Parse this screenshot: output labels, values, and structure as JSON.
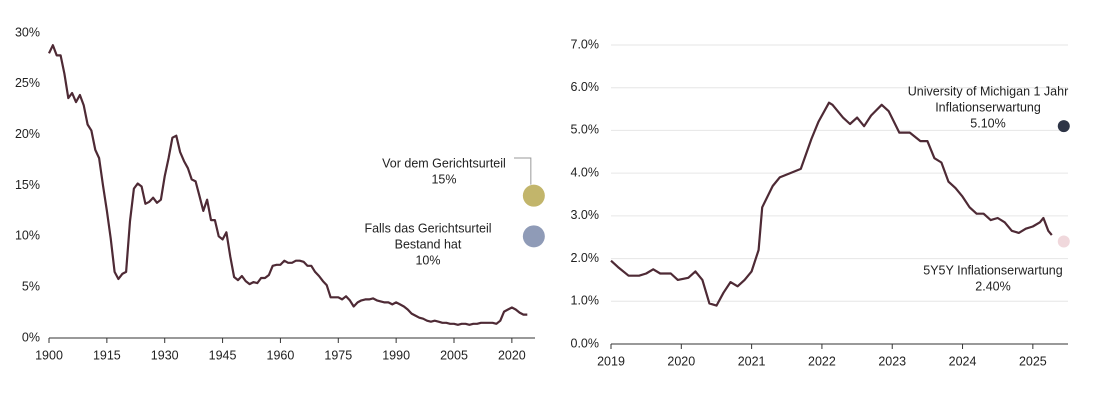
{
  "chart_data": [
    {
      "type": "line",
      "color": "#4e2a35",
      "x": [
        1900,
        1901,
        1902,
        1903,
        1904,
        1905,
        1906,
        1907,
        1908,
        1909,
        1910,
        1911,
        1912,
        1913,
        1914,
        1915,
        1916,
        1917,
        1918,
        1919,
        1920,
        1921,
        1922,
        1923,
        1924,
        1925,
        1926,
        1927,
        1928,
        1929,
        1930,
        1931,
        1932,
        1933,
        1934,
        1935,
        1936,
        1937,
        1938,
        1939,
        1940,
        1941,
        1942,
        1943,
        1944,
        1945,
        1946,
        1947,
        1948,
        1949,
        1950,
        1951,
        1952,
        1953,
        1954,
        1955,
        1956,
        1957,
        1958,
        1959,
        1960,
        1961,
        1962,
        1963,
        1964,
        1965,
        1966,
        1967,
        1968,
        1969,
        1970,
        1971,
        1972,
        1973,
        1974,
        1975,
        1976,
        1977,
        1978,
        1979,
        1980,
        1981,
        1982,
        1983,
        1984,
        1985,
        1986,
        1987,
        1988,
        1989,
        1990,
        1991,
        1992,
        1993,
        1994,
        1995,
        1996,
        1997,
        1998,
        1999,
        2000,
        2001,
        2002,
        2003,
        2004,
        2005,
        2006,
        2007,
        2008,
        2009,
        2010,
        2011,
        2012,
        2013,
        2014,
        2015,
        2016,
        2017,
        2018,
        2019,
        2020,
        2021,
        2022,
        2023,
        2024
      ],
      "values": [
        28,
        28.8,
        27.8,
        27.8,
        26,
        23.6,
        24.1,
        23.2,
        23.9,
        22.9,
        21,
        20.4,
        18.5,
        17.7,
        15,
        12.5,
        9.8,
        6.5,
        5.8,
        6.3,
        6.5,
        11.5,
        14.7,
        15.2,
        14.9,
        13.2,
        13.4,
        13.8,
        13.3,
        13.6,
        15.9,
        17.7,
        19.7,
        19.9,
        18.3,
        17.4,
        16.7,
        15.6,
        15.4,
        14,
        12.5,
        13.6,
        11.6,
        11.6,
        10,
        9.7,
        10.4,
        8,
        6,
        5.7,
        6.1,
        5.6,
        5.3,
        5.5,
        5.4,
        5.9,
        5.9,
        6.2,
        7.1,
        7.2,
        7.2,
        7.6,
        7.4,
        7.4,
        7.6,
        7.6,
        7.5,
        7.1,
        7.1,
        6.5,
        6.1,
        5.6,
        5.2,
        4.0,
        4.0,
        4.0,
        3.8,
        4.1,
        3.7,
        3.1,
        3.5,
        3.7,
        3.8,
        3.8,
        3.9,
        3.7,
        3.6,
        3.5,
        3.5,
        3.3,
        3.5,
        3.3,
        3.1,
        2.8,
        2.4,
        2.2,
        2.0,
        1.9,
        1.7,
        1.6,
        1.7,
        1.6,
        1.5,
        1.5,
        1.4,
        1.4,
        1.3,
        1.4,
        1.4,
        1.3,
        1.4,
        1.4,
        1.5,
        1.5,
        1.5,
        1.5,
        1.4,
        1.7,
        2.6,
        2.8,
        3.0,
        2.8,
        2.5,
        2.3,
        2.3
      ],
      "xlim": [
        1900,
        2026
      ],
      "xticks": [
        1900,
        1915,
        1930,
        1945,
        1960,
        1975,
        1990,
        2005,
        2020
      ],
      "ylim": [
        0,
        30
      ],
      "yticks": [
        {
          "value": 0,
          "label": "0%"
        },
        {
          "value": 5,
          "label": "5%"
        },
        {
          "value": 10,
          "label": "10%"
        },
        {
          "value": 15,
          "label": "15%"
        },
        {
          "value": 20,
          "label": "20%"
        },
        {
          "value": 25,
          "label": "25%"
        },
        {
          "value": 30,
          "label": "30%"
        }
      ],
      "grid": false,
      "annotations": [
        {
          "lines": [
            "Vor dem Gerichtsurteil",
            "15%"
          ],
          "x": 2025.7,
          "y": 14,
          "color": "#c2b56b"
        },
        {
          "lines": [
            "Falls das Gerichtsurteil",
            "Bestand hat",
            "10%"
          ],
          "x": 2025.7,
          "y": 10,
          "color": "#8f9bb7"
        }
      ]
    },
    {
      "type": "line",
      "color": "#4e2a35",
      "x": [
        2019.0,
        2019.1,
        2019.25,
        2019.4,
        2019.5,
        2019.6,
        2019.7,
        2019.85,
        2019.95,
        2020.1,
        2020.2,
        2020.3,
        2020.4,
        2020.5,
        2020.6,
        2020.7,
        2020.8,
        2020.9,
        2021.0,
        2021.1,
        2021.15,
        2021.3,
        2021.4,
        2021.55,
        2021.7,
        2021.85,
        2021.95,
        2022.1,
        2022.15,
        2022.3,
        2022.4,
        2022.5,
        2022.6,
        2022.7,
        2022.85,
        2022.95,
        2023.1,
        2023.25,
        2023.4,
        2023.5,
        2023.6,
        2023.7,
        2023.8,
        2023.9,
        2024.0,
        2024.1,
        2024.2,
        2024.3,
        2024.4,
        2024.5,
        2024.6,
        2024.7,
        2024.8,
        2024.9,
        2025.0,
        2025.1,
        2025.15,
        2025.22,
        2025.27
      ],
      "values": [
        1.95,
        1.8,
        1.6,
        1.6,
        1.65,
        1.75,
        1.65,
        1.65,
        1.5,
        1.55,
        1.7,
        1.5,
        0.95,
        0.9,
        1.2,
        1.45,
        1.35,
        1.5,
        1.7,
        2.2,
        3.2,
        3.7,
        3.9,
        4.0,
        4.1,
        4.8,
        5.2,
        5.65,
        5.6,
        5.3,
        5.15,
        5.3,
        5.1,
        5.35,
        5.6,
        5.45,
        4.95,
        4.95,
        4.75,
        4.75,
        4.35,
        4.25,
        3.8,
        3.65,
        3.45,
        3.2,
        3.05,
        3.05,
        2.9,
        2.95,
        2.85,
        2.65,
        2.6,
        2.7,
        2.75,
        2.85,
        2.95,
        2.65,
        2.55
      ],
      "xlim": [
        2019,
        2025.5
      ],
      "xticks": [
        2019,
        2020,
        2021,
        2022,
        2023,
        2024,
        2025
      ],
      "ylim": [
        0,
        7
      ],
      "yticks": [
        {
          "value": 0,
          "label": "0.0%"
        },
        {
          "value": 1,
          "label": "1.0%"
        },
        {
          "value": 2,
          "label": "2.0%"
        },
        {
          "value": 3,
          "label": "3.0%"
        },
        {
          "value": 4,
          "label": "4.0%"
        },
        {
          "value": 5,
          "label": "5.0%"
        },
        {
          "value": 6,
          "label": "6.0%"
        },
        {
          "value": 7,
          "label": "7.0%"
        }
      ],
      "grid": true,
      "annotations": [
        {
          "lines": [
            "University of Michigan 1 Jahr",
            "Inflationserwartung",
            "5.10%"
          ],
          "x": 2025.44,
          "y": 5.1,
          "color": "#2d3446"
        },
        {
          "lines": [
            "5Y5Y Inflationserwartung",
            "2.40%"
          ],
          "x": 2025.44,
          "y": 2.4,
          "color": "#f0d8dc"
        }
      ]
    }
  ]
}
